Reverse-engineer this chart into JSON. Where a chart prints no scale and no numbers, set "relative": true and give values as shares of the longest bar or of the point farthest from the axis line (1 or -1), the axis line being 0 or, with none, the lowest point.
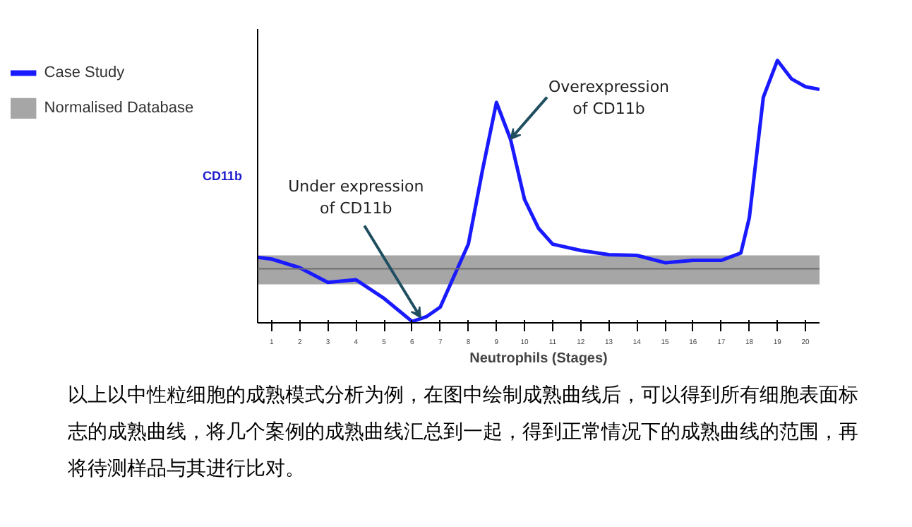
{
  "chart_data": {
    "type": "line",
    "relative": true,
    "xlabel": "Neutrophils (Stages)",
    "ylabel": "CD11b",
    "x": [
      0.5,
      1,
      2,
      3,
      4,
      5,
      6,
      6.5,
      7,
      8,
      8.5,
      9,
      9.5,
      10,
      10.5,
      11,
      12,
      13,
      14,
      15,
      16,
      17,
      17.7,
      18,
      18.5,
      19,
      19.5,
      20,
      20.5
    ],
    "xlim": [
      0.5,
      20.5
    ],
    "xticks": [
      1,
      2,
      3,
      4,
      5,
      6,
      7,
      8,
      9,
      10,
      11,
      12,
      13,
      14,
      15,
      16,
      17,
      18,
      19,
      20
    ],
    "series": [
      {
        "name": "Case Study",
        "color": "#1a1aff",
        "values": [
          0.25,
          0.243,
          0.21,
          0.154,
          0.164,
          0.093,
          0.005,
          0.023,
          0.06,
          0.3,
          0.58,
          0.84,
          0.7,
          0.47,
          0.36,
          0.3,
          0.276,
          0.26,
          0.257,
          0.229,
          0.238,
          0.238,
          0.266,
          0.4,
          0.86,
          1,
          0.93,
          0.9,
          0.89
        ]
      }
    ],
    "bands": [
      {
        "axis": "y",
        "from": 0.147,
        "to": 0.257,
        "label": "Normalised Database",
        "color": "#a6a6a6"
      }
    ],
    "ref_lines": [
      {
        "axis": "y",
        "value": 0.206,
        "color": "#6e6e6e"
      }
    ],
    "annotations": [
      {
        "text": "Under expression\nof CD11b",
        "x": 6.3,
        "y": 0.02
      },
      {
        "text": "Overexpression\nof CD11b",
        "x": 9.5,
        "y": 0.7
      },
      "以上以中性粒细胞的成熟模式分析为例，在图中绘制成熟曲线后，可以得到所有细胞表面标志的成熟曲线，将几个案例的成熟曲线汇总到一起，得到正常情况下的成熟曲线的范围，再将待测样品与其进行比对。"
    ],
    "legend": "left",
    "grid": false
  }
}
